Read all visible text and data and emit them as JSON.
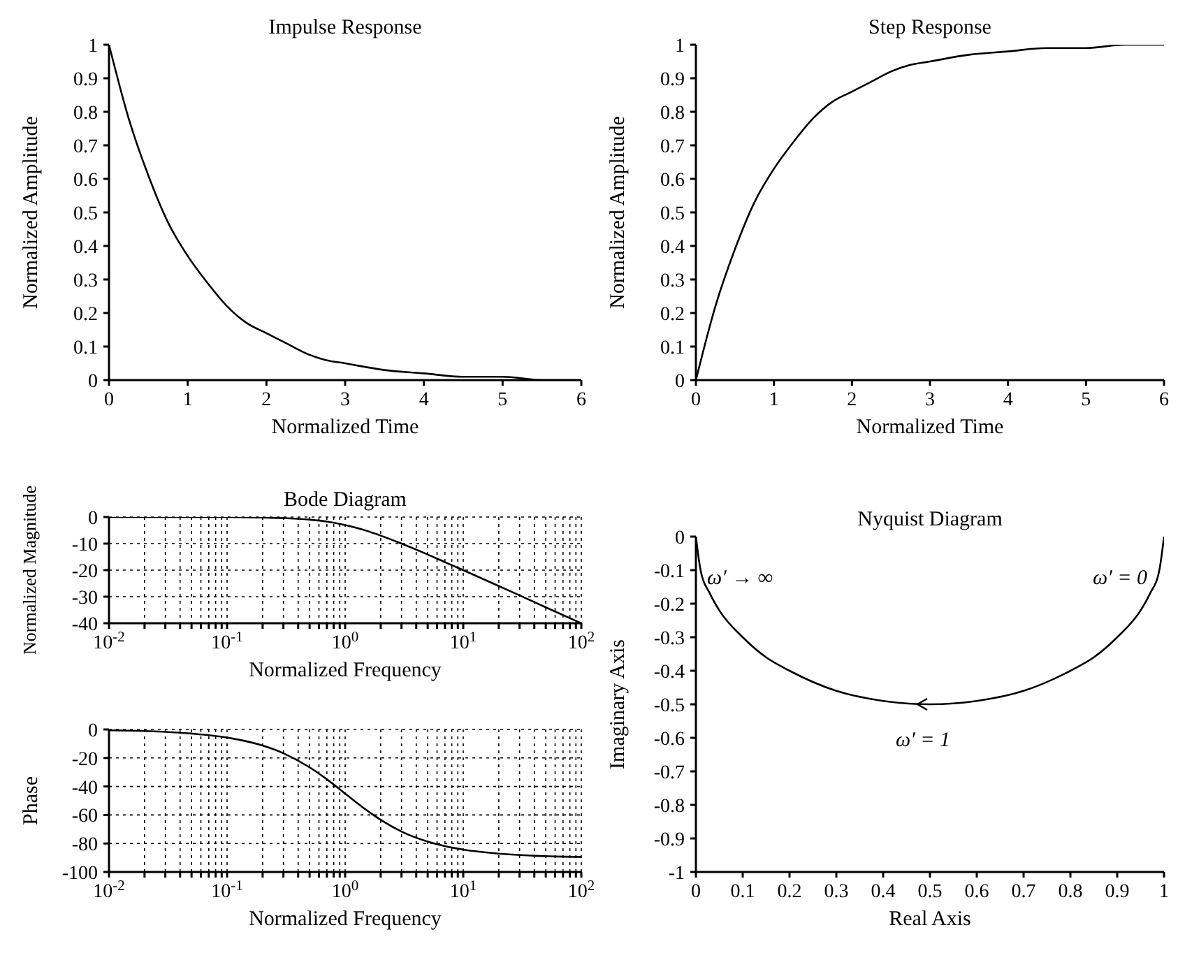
{
  "chart_data": [
    {
      "type": "line",
      "title": "Impulse Response",
      "xlabel": "Normalized Time",
      "ylabel": "Normalized Amplitude",
      "marker": "none",
      "line_style": "solid",
      "grid": false,
      "x": [
        0,
        0.25,
        0.5,
        0.75,
        1,
        1.25,
        1.5,
        1.75,
        2,
        2.25,
        2.5,
        2.75,
        3,
        3.5,
        4,
        4.5,
        5,
        5.5,
        6
      ],
      "series": [
        {
          "color": "#000000",
          "values": [
            1,
            0.78,
            0.61,
            0.47,
            0.37,
            0.29,
            0.22,
            0.17,
            0.14,
            0.11,
            0.08,
            0.06,
            0.05,
            0.03,
            0.02,
            0.01,
            0.01,
            0,
            0
          ]
        }
      ],
      "xlim": [
        0,
        6
      ],
      "ylim": [
        0,
        1
      ],
      "xticks": [
        0,
        1,
        2,
        3,
        4,
        5,
        6
      ],
      "yticks": [
        0,
        0.1,
        0.2,
        0.3,
        0.4,
        0.5,
        0.6,
        0.7,
        0.8,
        0.9,
        1
      ]
    },
    {
      "type": "line",
      "title": "Step Response",
      "xlabel": "Normalized Time",
      "ylabel": "Normalized Amplitude",
      "marker": "none",
      "line_style": "solid",
      "grid": false,
      "x": [
        0,
        0.25,
        0.5,
        0.75,
        1,
        1.25,
        1.5,
        1.75,
        2,
        2.25,
        2.5,
        2.75,
        3,
        3.5,
        4,
        4.5,
        5,
        5.5,
        6
      ],
      "series": [
        {
          "color": "#000000",
          "values": [
            0,
            0.22,
            0.39,
            0.53,
            0.63,
            0.71,
            0.78,
            0.83,
            0.86,
            0.89,
            0.92,
            0.94,
            0.95,
            0.97,
            0.98,
            0.99,
            0.99,
            1,
            1
          ]
        }
      ],
      "xlim": [
        0,
        6
      ],
      "ylim": [
        0,
        1
      ],
      "xticks": [
        0,
        1,
        2,
        3,
        4,
        5,
        6
      ],
      "yticks": [
        0,
        0.1,
        0.2,
        0.3,
        0.4,
        0.5,
        0.6,
        0.7,
        0.8,
        0.9,
        1
      ]
    },
    {
      "type": "line",
      "title": "Bode Diagram",
      "xlabel": "Normalized Frequency",
      "ylabel": "Normalized Magnitude",
      "marker": "none",
      "line_style": "solid",
      "grid": true,
      "log": "x",
      "x": [
        0.01,
        0.1,
        0.2,
        0.3,
        0.5,
        0.7,
        1,
        1.5,
        2,
        3,
        5,
        7,
        10,
        20,
        30,
        50,
        100
      ],
      "series": [
        {
          "color": "#000000",
          "values": [
            0,
            0,
            -0.2,
            -0.4,
            -1,
            -1.7,
            -3,
            -5.1,
            -7,
            -10,
            -14.1,
            -17,
            -20,
            -26,
            -29.5,
            -34,
            -40
          ]
        }
      ],
      "xlim": [
        0.01,
        100
      ],
      "ylim": [
        -40,
        0
      ],
      "xticks": [
        {
          "value": 0.01,
          "label": "10$^{-2}$"
        },
        {
          "value": 0.02,
          "label": null
        },
        {
          "value": 0.03,
          "label": null
        },
        {
          "value": 0.04,
          "label": null
        },
        {
          "value": 0.05,
          "label": null
        },
        {
          "value": 0.06,
          "label": null
        },
        {
          "value": 0.07,
          "label": null
        },
        {
          "value": 0.08,
          "label": null
        },
        {
          "value": 0.09,
          "label": null
        },
        {
          "value": 0.1,
          "label": "10$^{-1}$"
        },
        {
          "value": 0.2,
          "label": null
        },
        {
          "value": 0.3,
          "label": null
        },
        {
          "value": 0.4,
          "label": null
        },
        {
          "value": 0.5,
          "label": null
        },
        {
          "value": 0.6,
          "label": null
        },
        {
          "value": 0.7,
          "label": null
        },
        {
          "value": 0.8,
          "label": null
        },
        {
          "value": 0.9,
          "label": null
        },
        {
          "value": 1,
          "label": "10$^{0}$"
        },
        {
          "value": 2,
          "label": null
        },
        {
          "value": 3,
          "label": null
        },
        {
          "value": 4,
          "label": null
        },
        {
          "value": 5,
          "label": null
        },
        {
          "value": 6,
          "label": null
        },
        {
          "value": 7,
          "label": null
        },
        {
          "value": 8,
          "label": null
        },
        {
          "value": 9,
          "label": null
        },
        {
          "value": 10,
          "label": "10$^{1}$"
        },
        {
          "value": 20,
          "label": null
        },
        {
          "value": 30,
          "label": null
        },
        {
          "value": 40,
          "label": null
        },
        {
          "value": 50,
          "label": null
        },
        {
          "value": 60,
          "label": null
        },
        {
          "value": 70,
          "label": null
        },
        {
          "value": 80,
          "label": null
        },
        {
          "value": 90,
          "label": null
        },
        {
          "value": 100,
          "label": "10$^{2}$"
        }
      ],
      "yticks": [
        -40,
        -30,
        -20,
        -10,
        0
      ]
    },
    {
      "type": "line",
      "xlabel": "Normalized Frequency",
      "ylabel": "Phase",
      "marker": "none",
      "line_style": "solid",
      "grid": true,
      "log": "x",
      "x": [
        0.01,
        0.02,
        0.05,
        0.1,
        0.2,
        0.3,
        0.5,
        0.7,
        1,
        1.5,
        2,
        3,
        5,
        7,
        10,
        20,
        50,
        100
      ],
      "series": [
        {
          "color": "#000000",
          "values": [
            -0.6,
            -1.1,
            -2.9,
            -5.7,
            -11.3,
            -16.7,
            -26.6,
            -35,
            -45,
            -56.3,
            -63.4,
            -71.6,
            -78.7,
            -81.9,
            -84.3,
            -87.1,
            -88.9,
            -89.4
          ]
        }
      ],
      "xlim": [
        0.01,
        100
      ],
      "ylim": [
        -100,
        0
      ],
      "xticks": [
        {
          "value": 0.01,
          "label": "10$^{-2}$"
        },
        {
          "value": 0.02,
          "label": null
        },
        {
          "value": 0.03,
          "label": null
        },
        {
          "value": 0.04,
          "label": null
        },
        {
          "value": 0.05,
          "label": null
        },
        {
          "value": 0.06,
          "label": null
        },
        {
          "value": 0.07,
          "label": null
        },
        {
          "value": 0.08,
          "label": null
        },
        {
          "value": 0.09,
          "label": null
        },
        {
          "value": 0.1,
          "label": "10$^{-1}$"
        },
        {
          "value": 0.2,
          "label": null
        },
        {
          "value": 0.3,
          "label": null
        },
        {
          "value": 0.4,
          "label": null
        },
        {
          "value": 0.5,
          "label": null
        },
        {
          "value": 0.6,
          "label": null
        },
        {
          "value": 0.7,
          "label": null
        },
        {
          "value": 0.8,
          "label": null
        },
        {
          "value": 0.9,
          "label": null
        },
        {
          "value": 1,
          "label": "10$^{0}$"
        },
        {
          "value": 2,
          "label": null
        },
        {
          "value": 3,
          "label": null
        },
        {
          "value": 4,
          "label": null
        },
        {
          "value": 5,
          "label": null
        },
        {
          "value": 6,
          "label": null
        },
        {
          "value": 7,
          "label": null
        },
        {
          "value": 8,
          "label": null
        },
        {
          "value": 9,
          "label": null
        },
        {
          "value": 10,
          "label": "10$^{1}$"
        },
        {
          "value": 20,
          "label": null
        },
        {
          "value": 30,
          "label": null
        },
        {
          "value": 40,
          "label": null
        },
        {
          "value": 50,
          "label": null
        },
        {
          "value": 60,
          "label": null
        },
        {
          "value": 70,
          "label": null
        },
        {
          "value": 80,
          "label": null
        },
        {
          "value": 90,
          "label": null
        },
        {
          "value": 100,
          "label": "10$^{2}$"
        }
      ],
      "yticks": [
        -100,
        -80,
        -60,
        -40,
        -20,
        0
      ]
    },
    {
      "type": "line",
      "title": "Nyquist Diagram",
      "xlabel": "Real Axis",
      "ylabel": "Imaginary Axis",
      "marker": "none",
      "line_style": "solid",
      "grid": false,
      "x": [
        0,
        0.01,
        0.03,
        0.05,
        0.1,
        0.15,
        0.2,
        0.3,
        0.4,
        0.5,
        0.6,
        0.7,
        0.8,
        0.85,
        0.9,
        0.95,
        0.97,
        0.99,
        1
      ],
      "series": [
        {
          "color": "#000000",
          "values": [
            0,
            -0.1,
            -0.17,
            -0.22,
            -0.3,
            -0.36,
            -0.4,
            -0.46,
            -0.49,
            -0.5,
            -0.49,
            -0.46,
            -0.4,
            -0.36,
            -0.3,
            -0.22,
            -0.17,
            -0.1,
            0
          ]
        }
      ],
      "xlim": [
        0,
        1
      ],
      "ylim": [
        -1,
        0
      ],
      "xticks": [
        0,
        0.1,
        0.2,
        0.3,
        0.4,
        0.5,
        0.6,
        0.7,
        0.8,
        0.9,
        1
      ],
      "yticks": [
        -1,
        -0.9,
        -0.8,
        -0.7,
        -0.6,
        -0.5,
        -0.4,
        -0.3,
        -0.2,
        -0.1,
        0
      ],
      "annotations": [
        {
          "text": "ω′ → ∞",
          "x": 0,
          "y": 0
        },
        {
          "text": "ω′ = 0",
          "x": 1,
          "y": 0
        },
        {
          "text": "ω′ = 1",
          "x": 0.5,
          "y": -0.5
        }
      ]
    }
  ]
}
